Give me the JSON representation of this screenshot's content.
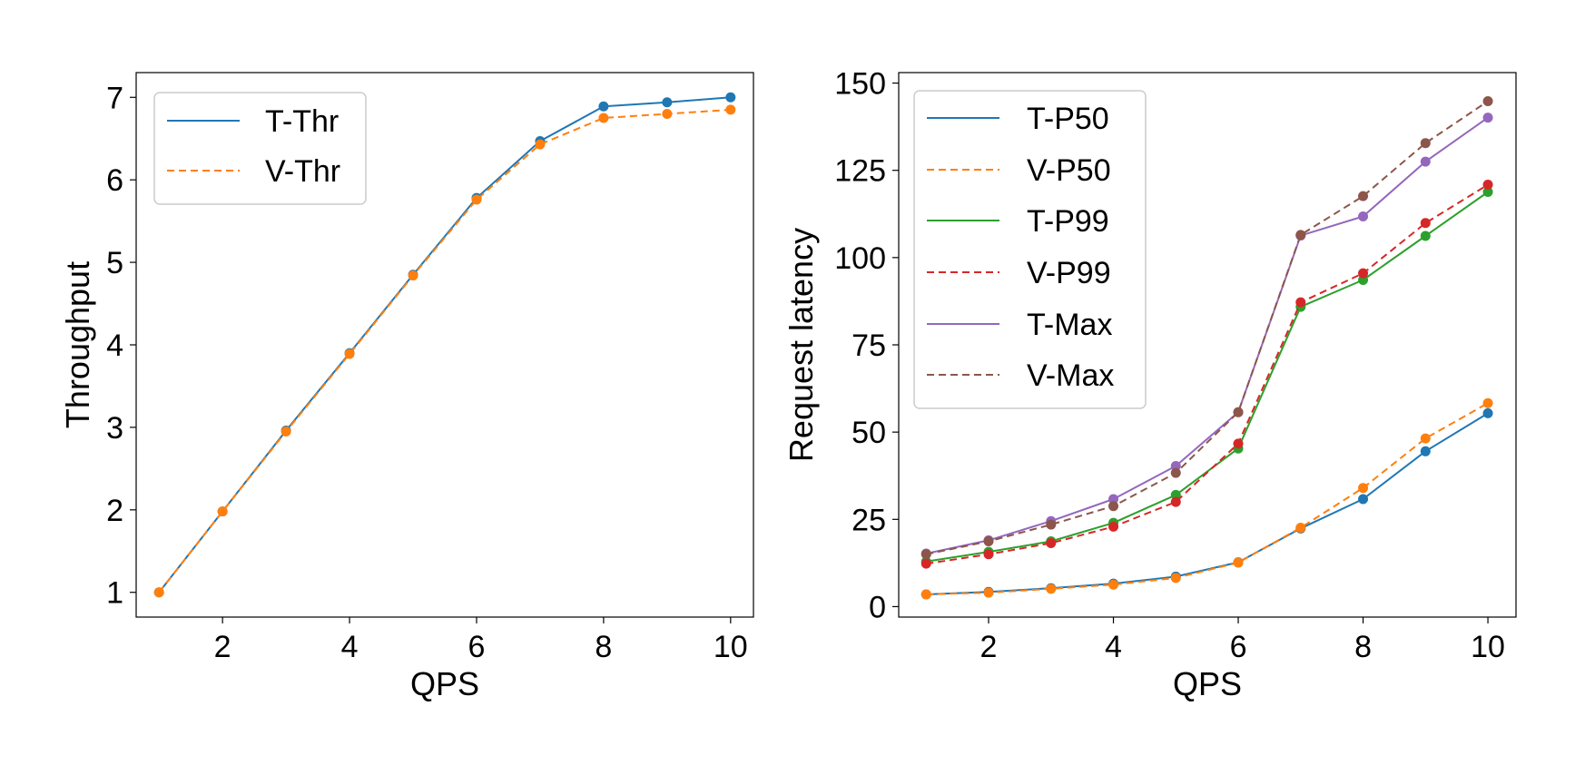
{
  "chart_data": [
    {
      "type": "line",
      "xlabel": "QPS",
      "ylabel": "Throughput",
      "xlim": [
        0.64,
        10.36
      ],
      "ylim": [
        0.7,
        7.3
      ],
      "x_ticks": [
        2,
        4,
        6,
        8,
        10
      ],
      "y_ticks": [
        1,
        2,
        3,
        4,
        5,
        6,
        7
      ],
      "legend_position": "upper-left",
      "x": [
        1,
        2,
        3,
        4,
        5,
        6,
        7,
        8,
        9,
        10
      ],
      "series": [
        {
          "name": "T-Thr",
          "color": "#1f77b4",
          "dash": "solid",
          "values": [
            1.0,
            1.98,
            2.96,
            3.9,
            4.85,
            5.78,
            6.47,
            6.89,
            6.94,
            7.0
          ]
        },
        {
          "name": "V-Thr",
          "color": "#ff7f0e",
          "dash": "dashed",
          "values": [
            1.0,
            1.98,
            2.95,
            3.89,
            4.84,
            5.76,
            6.43,
            6.75,
            6.8,
            6.85
          ]
        }
      ]
    },
    {
      "type": "line",
      "xlabel": "QPS",
      "ylabel": "Request latency",
      "xlim": [
        0.56,
        10.45
      ],
      "ylim": [
        -3,
        153
      ],
      "x_ticks": [
        2,
        4,
        6,
        8,
        10
      ],
      "y_ticks": [
        0,
        25,
        50,
        75,
        100,
        125,
        150
      ],
      "legend_position": "upper-left",
      "x": [
        1,
        2,
        3,
        4,
        5,
        6,
        7,
        8,
        9,
        10
      ],
      "series": [
        {
          "name": "T-P50",
          "color": "#1f77b4",
          "dash": "solid",
          "values": [
            3.5,
            4.2,
            5.3,
            6.6,
            8.6,
            12.7,
            22.4,
            30.8,
            44.5,
            55.4
          ]
        },
        {
          "name": "V-P50",
          "color": "#ff7f0e",
          "dash": "dashed",
          "values": [
            3.5,
            4.0,
            5.1,
            6.3,
            8.2,
            12.6,
            22.6,
            34.0,
            48.2,
            58.3
          ]
        },
        {
          "name": "T-P99",
          "color": "#2ca02c",
          "dash": "solid",
          "values": [
            12.9,
            15.7,
            18.7,
            24.0,
            32.0,
            45.3,
            85.9,
            93.6,
            106.2,
            118.8
          ]
        },
        {
          "name": "V-P99",
          "color": "#d62728",
          "dash": "dashed",
          "values": [
            12.3,
            15.0,
            18.2,
            22.9,
            30.0,
            46.7,
            87.2,
            95.5,
            109.9,
            120.9
          ]
        },
        {
          "name": "T-Max",
          "color": "#9467bd",
          "dash": "solid",
          "values": [
            15.2,
            19.0,
            24.5,
            30.8,
            40.3,
            55.7,
            106.3,
            111.8,
            127.5,
            140.1
          ]
        },
        {
          "name": "V-Max",
          "color": "#8c564b",
          "dash": "dashed",
          "values": [
            15.0,
            18.7,
            23.5,
            28.8,
            38.3,
            55.7,
            106.5,
            117.6,
            132.8,
            144.8
          ]
        }
      ]
    }
  ]
}
